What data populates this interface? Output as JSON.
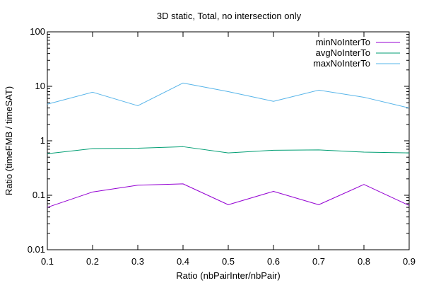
{
  "chart_data": {
    "type": "line",
    "title": "3D static, Total, no intersection only",
    "xlabel": "Ratio (nbPairInter/nbPair)",
    "ylabel": "Ratio (timeFMB / timeSAT)",
    "x": [
      0.1,
      0.2,
      0.3,
      0.4,
      0.5,
      0.6,
      0.7,
      0.8,
      0.9
    ],
    "xlim": [
      0.1,
      0.9
    ],
    "xticks": [
      "0.1",
      "0.2",
      "0.3",
      "0.4",
      "0.5",
      "0.6",
      "0.7",
      "0.8",
      "0.9"
    ],
    "ylim": [
      0.01,
      100
    ],
    "yscale": "log",
    "yticks": [
      "0.01",
      "0.1",
      "1",
      "10",
      "100"
    ],
    "grid": false,
    "legend_position": "top-right",
    "series": [
      {
        "name": "minNoInterTo",
        "color": "#9400d3",
        "values": [
          0.06,
          0.115,
          0.153,
          0.162,
          0.067,
          0.118,
          0.067,
          0.158,
          0.065
        ]
      },
      {
        "name": "avgNoInterTo",
        "color": "#009e73",
        "values": [
          0.58,
          0.72,
          0.73,
          0.78,
          0.6,
          0.67,
          0.68,
          0.62,
          0.6
        ]
      },
      {
        "name": "maxNoInterTo",
        "color": "#56b4e9",
        "values": [
          4.7,
          7.8,
          4.4,
          11.5,
          8.0,
          5.3,
          8.5,
          6.3,
          4.0
        ]
      }
    ]
  }
}
